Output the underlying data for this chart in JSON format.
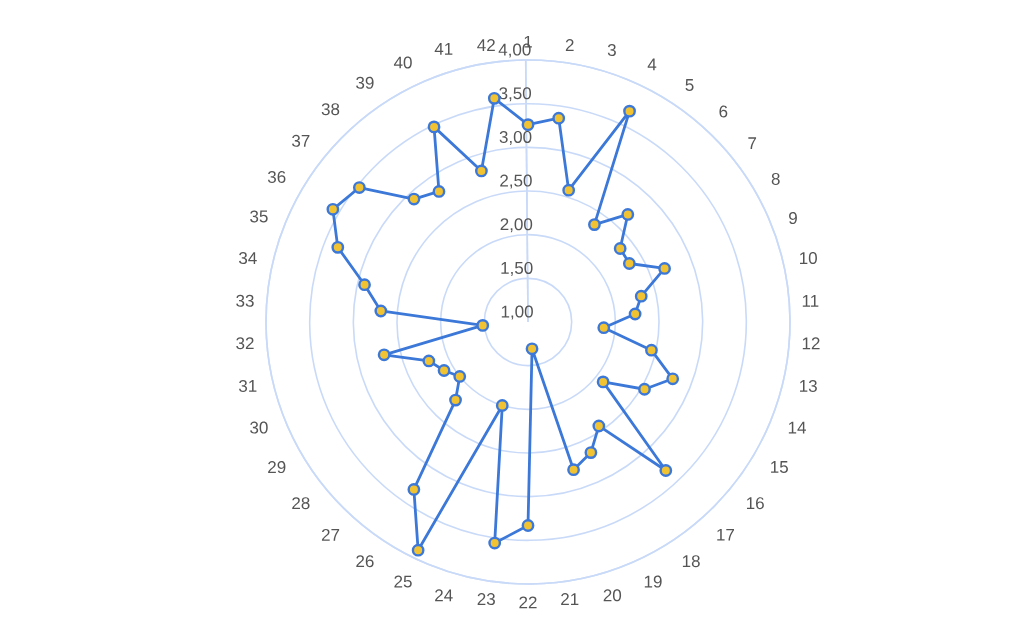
{
  "chart_data": {
    "type": "radar",
    "categories": [
      "1",
      "2",
      "3",
      "4",
      "5",
      "6",
      "7",
      "8",
      "9",
      "10",
      "11",
      "12",
      "13",
      "14",
      "15",
      "16",
      "17",
      "18",
      "19",
      "20",
      "21",
      "22",
      "23",
      "24",
      "25",
      "26",
      "27",
      "28",
      "29",
      "30",
      "31",
      "32",
      "33",
      "34",
      "35",
      "36",
      "37",
      "38",
      "39",
      "40",
      "41",
      "42"
    ],
    "series": [
      {
        "color": "#3c78d8",
        "values": [
          3.26,
          3.36,
          2.58,
          3.68,
          2.35,
          2.68,
          2.35,
          2.34,
          2.68,
          2.33,
          2.23,
          1.87,
          2.45,
          2.78,
          2.54,
          2.1,
          3.32,
          2.44,
          2.66,
          2.77,
          1.31,
          3.33,
          3.56,
          2.0,
          3.9,
          3.32,
          2.22,
          2.0,
          2.11,
          2.22,
          2.69,
          1.52,
          2.69,
          2.92,
          3.34,
          3.58,
          3.47,
          2.92,
          2.81,
          3.48,
          2.81,
          3.59
        ]
      }
    ],
    "ylim": [
      1,
      4
    ],
    "yticks": [
      {
        "value": 1,
        "label": "1,00"
      },
      {
        "value": 1.5,
        "label": "1,50"
      },
      {
        "value": 2,
        "label": "2,00"
      },
      {
        "value": 2.5,
        "label": "2,50"
      },
      {
        "value": 3,
        "label": "3,00"
      },
      {
        "value": 3.5,
        "label": "3,50"
      },
      {
        "value": 4,
        "label": "4,00"
      }
    ],
    "grid": "y",
    "marker": "circle",
    "line_style": "solid",
    "legend": false
  }
}
